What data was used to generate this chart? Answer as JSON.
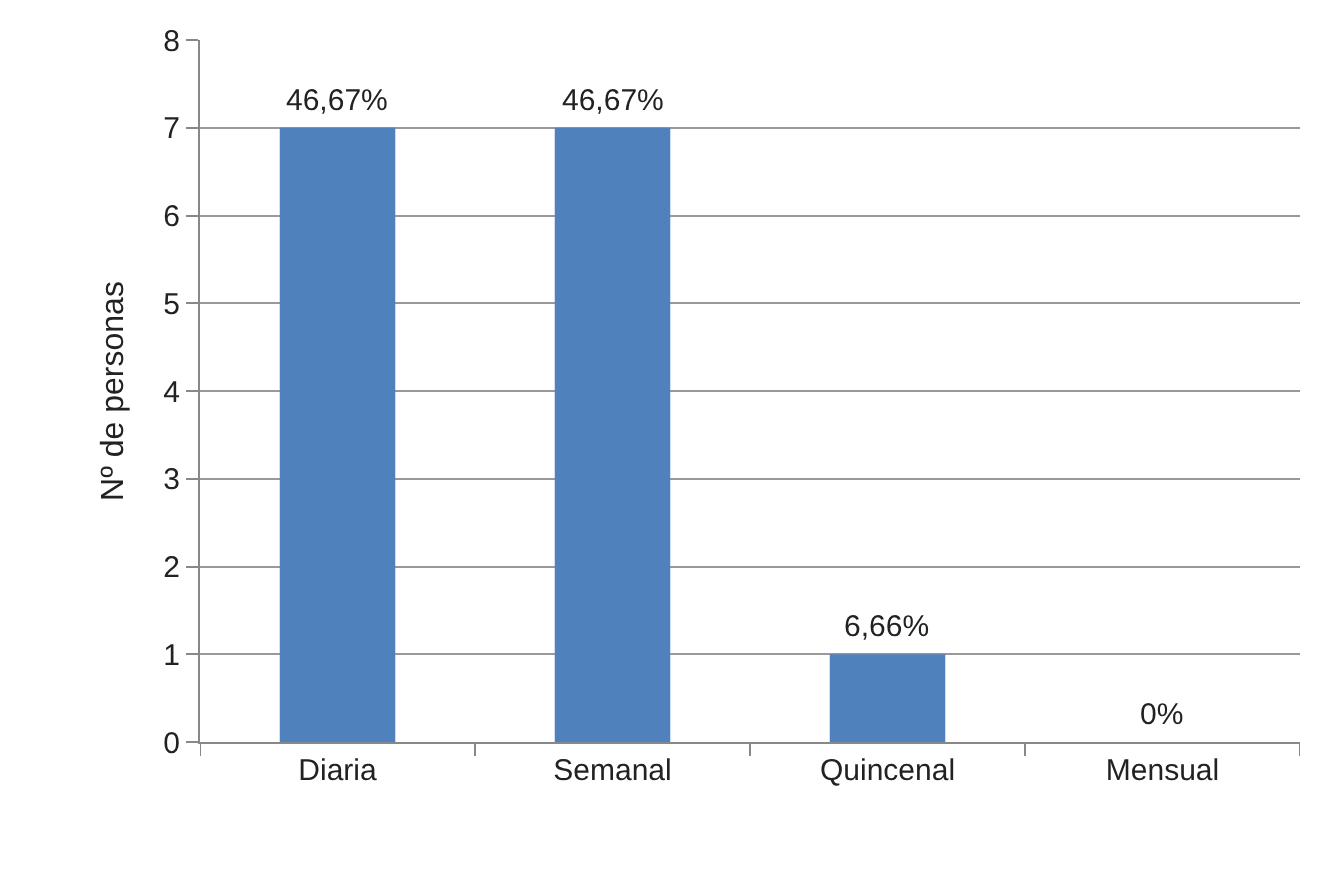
{
  "chart_data": {
    "type": "bar",
    "ylabel": "Nº de personas",
    "categories": [
      "Diaria",
      "Semanal",
      "Quincenal",
      "Mensual"
    ],
    "values": [
      7,
      7,
      1,
      0
    ],
    "color": "#4f81bd",
    "annotations": [
      {
        "text": "46,67%",
        "x": "Diaria",
        "y": 7
      },
      {
        "text": "46,67%",
        "x": "Semanal",
        "y": 7
      },
      {
        "text": "6,66%",
        "x": "Quincenal",
        "y": 1
      },
      {
        "text": "0%",
        "x": "Mensual",
        "y": 0
      }
    ],
    "ylim": [
      0,
      8
    ],
    "yticks": [
      0,
      1,
      2,
      3,
      4,
      5,
      6,
      7,
      8
    ],
    "grid": "y"
  }
}
